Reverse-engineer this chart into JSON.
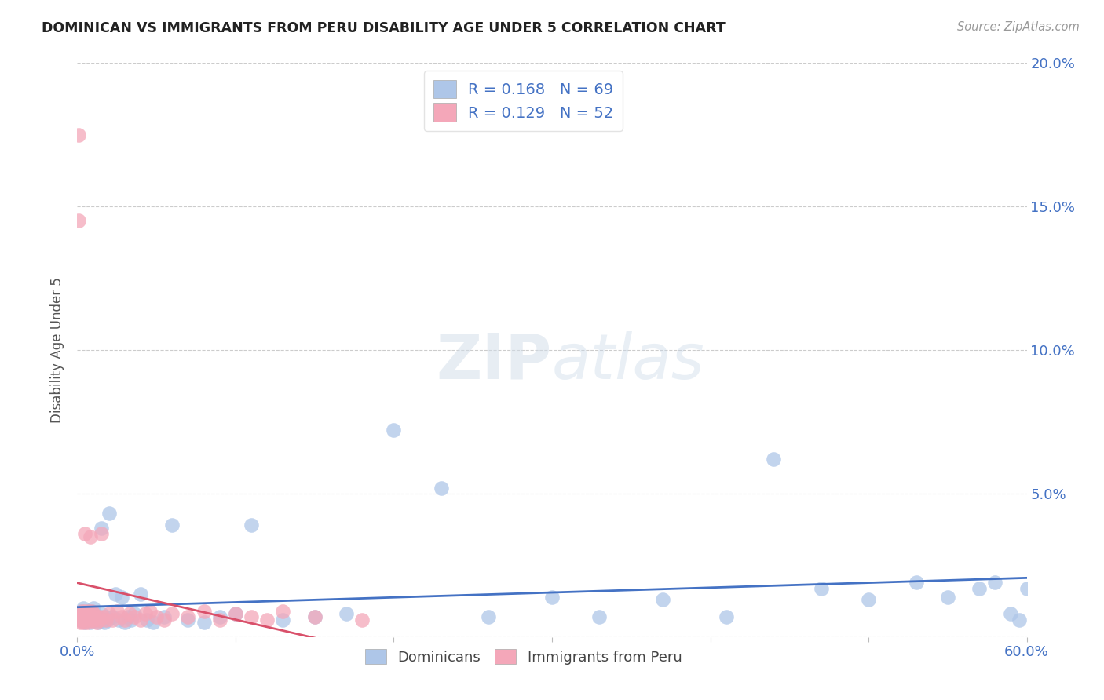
{
  "title": "DOMINICAN VS IMMIGRANTS FROM PERU DISABILITY AGE UNDER 5 CORRELATION CHART",
  "source": "Source: ZipAtlas.com",
  "ylabel": "Disability Age Under 5",
  "xlim": [
    0,
    0.6
  ],
  "ylim": [
    0,
    0.2
  ],
  "yticks": [
    0.0,
    0.05,
    0.1,
    0.15,
    0.2
  ],
  "dominicans_color": "#aec6e8",
  "peru_color": "#f4a7b9",
  "dominicans_line_color": "#4472c4",
  "peru_line_color": "#d9506a",
  "peru_dashed_color": "#e8b4bf",
  "dominicans_R": 0.168,
  "dominicans_N": 69,
  "peru_R": 0.129,
  "peru_N": 52,
  "legend_label_1": "Dominicans",
  "legend_label_2": "Immigrants from Peru",
  "background_color": "#ffffff",
  "title_color": "#222222",
  "axis_label_color": "#4472c4",
  "dominicans_x": [
    0.001,
    0.002,
    0.003,
    0.003,
    0.004,
    0.004,
    0.005,
    0.005,
    0.006,
    0.006,
    0.007,
    0.007,
    0.008,
    0.008,
    0.009,
    0.009,
    0.01,
    0.01,
    0.011,
    0.011,
    0.012,
    0.013,
    0.013,
    0.014,
    0.015,
    0.015,
    0.016,
    0.017,
    0.018,
    0.019,
    0.02,
    0.022,
    0.024,
    0.026,
    0.028,
    0.03,
    0.032,
    0.034,
    0.036,
    0.04,
    0.044,
    0.048,
    0.055,
    0.06,
    0.07,
    0.08,
    0.09,
    0.1,
    0.11,
    0.13,
    0.15,
    0.17,
    0.2,
    0.23,
    0.26,
    0.3,
    0.33,
    0.37,
    0.41,
    0.44,
    0.47,
    0.5,
    0.53,
    0.55,
    0.57,
    0.58,
    0.59,
    0.595,
    0.6
  ],
  "dominicans_y": [
    0.008,
    0.006,
    0.007,
    0.009,
    0.006,
    0.01,
    0.005,
    0.008,
    0.007,
    0.009,
    0.006,
    0.008,
    0.005,
    0.007,
    0.006,
    0.009,
    0.007,
    0.01,
    0.006,
    0.008,
    0.006,
    0.005,
    0.007,
    0.006,
    0.038,
    0.008,
    0.006,
    0.005,
    0.007,
    0.006,
    0.043,
    0.007,
    0.015,
    0.006,
    0.014,
    0.005,
    0.007,
    0.006,
    0.008,
    0.015,
    0.006,
    0.005,
    0.007,
    0.039,
    0.006,
    0.005,
    0.007,
    0.008,
    0.039,
    0.006,
    0.007,
    0.008,
    0.072,
    0.052,
    0.007,
    0.014,
    0.007,
    0.013,
    0.007,
    0.062,
    0.017,
    0.013,
    0.019,
    0.014,
    0.017,
    0.019,
    0.008,
    0.006,
    0.017
  ],
  "peru_x": [
    0.001,
    0.001,
    0.002,
    0.002,
    0.003,
    0.003,
    0.004,
    0.004,
    0.005,
    0.005,
    0.005,
    0.006,
    0.006,
    0.007,
    0.007,
    0.008,
    0.008,
    0.009,
    0.009,
    0.01,
    0.01,
    0.011,
    0.012,
    0.013,
    0.014,
    0.015,
    0.016,
    0.018,
    0.02,
    0.022,
    0.025,
    0.028,
    0.03,
    0.033,
    0.036,
    0.04,
    0.043,
    0.046,
    0.05,
    0.055,
    0.06,
    0.07,
    0.08,
    0.09,
    0.1,
    0.11,
    0.12,
    0.13,
    0.15,
    0.18,
    0.001,
    0.001
  ],
  "peru_y": [
    0.006,
    0.008,
    0.005,
    0.007,
    0.006,
    0.009,
    0.005,
    0.008,
    0.007,
    0.009,
    0.036,
    0.005,
    0.008,
    0.006,
    0.009,
    0.035,
    0.007,
    0.006,
    0.009,
    0.007,
    0.008,
    0.006,
    0.005,
    0.007,
    0.006,
    0.036,
    0.007,
    0.006,
    0.008,
    0.006,
    0.009,
    0.007,
    0.006,
    0.008,
    0.007,
    0.006,
    0.008,
    0.009,
    0.007,
    0.006,
    0.008,
    0.007,
    0.009,
    0.006,
    0.008,
    0.007,
    0.006,
    0.009,
    0.007,
    0.006,
    0.175,
    0.145
  ]
}
